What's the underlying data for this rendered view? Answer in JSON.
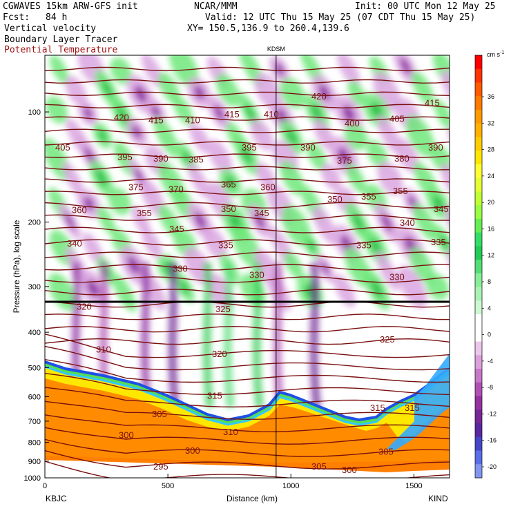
{
  "header": {
    "model": "CGWAVES 15km ARW-GFS init",
    "fcst_label": "Fcst:",
    "fcst_value": "84 h",
    "field1": "Vertical velocity",
    "field2": "Boundary Layer Tracer",
    "field3": "Potential Temperature",
    "center": "NCAR/MMM",
    "init": "Init: 00 UTC Mon 12 May 25",
    "valid": "Valid: 12 UTC Thu 15 May 25 (07 CDT Thu 15 May 25)",
    "xy": "XY= 150.5,136.9 to 260.4,139.6"
  },
  "chart_data": {
    "type": "heatmap",
    "subtitle": "cross section",
    "midpoint_label": "KDSM",
    "midpoint_km": 940,
    "xlabel": "Distance (km)",
    "ylabel": "Pressure (hPa), log scale",
    "xlim": [
      0,
      1645
    ],
    "ylim": [
      1000,
      70
    ],
    "y_scale": "log",
    "x_ticks": [
      0,
      500,
      1000,
      1500
    ],
    "y_ticks": [
      100,
      200,
      300,
      400,
      500,
      600,
      700,
      800,
      900,
      1000
    ],
    "left_station": "KBJC",
    "right_station": "KIND",
    "colorbar": {
      "unit": "cm s",
      "unit_exp": "-1",
      "labels": [
        36,
        32,
        28,
        24,
        20,
        16,
        12,
        8,
        4,
        0,
        -4,
        -8,
        -12,
        -16,
        -20
      ],
      "colors": [
        "#ff0000",
        "#ff3300",
        "#ff5a00",
        "#ff7a00",
        "#ff9900",
        "#ffb000",
        "#ffcc00",
        "#ffe600",
        "#ffff33",
        "#e6ff33",
        "#c0ff33",
        "#99ff44",
        "#66ee55",
        "#33dd66",
        "#22cc55",
        "#55dd77",
        "#88ee99",
        "#aaf2b4",
        "#ccf8d2",
        "#ffffff",
        "#ffffff",
        "#ebc8eb",
        "#dca0dc",
        "#c878c8",
        "#b050b4",
        "#9632a0",
        "#782896",
        "#5a28a0",
        "#4646c8",
        "#5a6ee6",
        "#8296f0"
      ]
    },
    "theta_labels": [
      {
        "v": "420",
        "x": 165,
        "p": 105
      },
      {
        "v": "415",
        "x": 215,
        "p": 107
      },
      {
        "v": "410",
        "x": 268,
        "p": 107
      },
      {
        "v": "415",
        "x": 325,
        "p": 103
      },
      {
        "v": "410",
        "x": 382,
        "p": 103
      },
      {
        "v": "420",
        "x": 451,
        "p": 92
      },
      {
        "v": "400",
        "x": 499,
        "p": 109
      },
      {
        "v": "405",
        "x": 564,
        "p": 106
      },
      {
        "v": "415",
        "x": 615,
        "p": 96
      },
      {
        "v": "405",
        "x": 80,
        "p": 127
      },
      {
        "v": "395",
        "x": 170,
        "p": 135
      },
      {
        "v": "390",
        "x": 222,
        "p": 136
      },
      {
        "v": "385",
        "x": 273,
        "p": 137
      },
      {
        "v": "395",
        "x": 350,
        "p": 127
      },
      {
        "v": "390",
        "x": 435,
        "p": 127
      },
      {
        "v": "375",
        "x": 488,
        "p": 138
      },
      {
        "v": "380",
        "x": 571,
        "p": 136
      },
      {
        "v": "390",
        "x": 620,
        "p": 127
      },
      {
        "v": "375",
        "x": 186,
        "p": 163
      },
      {
        "v": "370",
        "x": 244,
        "p": 165
      },
      {
        "v": "365",
        "x": 320,
        "p": 160
      },
      {
        "v": "360",
        "x": 377,
        "p": 163
      },
      {
        "v": "350",
        "x": 474,
        "p": 176
      },
      {
        "v": "355",
        "x": 523,
        "p": 173
      },
      {
        "v": "355",
        "x": 569,
        "p": 167
      },
      {
        "v": "360",
        "x": 104,
        "p": 188
      },
      {
        "v": "355",
        "x": 198,
        "p": 192
      },
      {
        "v": "350",
        "x": 320,
        "p": 187
      },
      {
        "v": "345",
        "x": 368,
        "p": 192
      },
      {
        "v": "345",
        "x": 628,
        "p": 187
      },
      {
        "v": "345",
        "x": 245,
        "p": 212
      },
      {
        "v": "340",
        "x": 579,
        "p": 204
      },
      {
        "v": "340",
        "x": 97,
        "p": 232
      },
      {
        "v": "335",
        "x": 316,
        "p": 235
      },
      {
        "v": "335",
        "x": 516,
        "p": 235
      },
      {
        "v": "335",
        "x": 624,
        "p": 230
      },
      {
        "v": "330",
        "x": 250,
        "p": 272
      },
      {
        "v": "330",
        "x": 361,
        "p": 283
      },
      {
        "v": "330",
        "x": 564,
        "p": 287
      },
      {
        "v": "325",
        "x": 312,
        "p": 351
      },
      {
        "v": "325",
        "x": 550,
        "p": 425
      },
      {
        "v": "320",
        "x": 111,
        "p": 346
      },
      {
        "v": "320",
        "x": 307,
        "p": 465
      },
      {
        "v": "310",
        "x": 139,
        "p": 452
      },
      {
        "v": "315",
        "x": 300,
        "p": 605
      },
      {
        "v": "315",
        "x": 536,
        "p": 653
      },
      {
        "v": "315",
        "x": 586,
        "p": 653
      },
      {
        "v": "305",
        "x": 220,
        "p": 680
      },
      {
        "v": "300",
        "x": 172,
        "p": 775
      },
      {
        "v": "310",
        "x": 323,
        "p": 760
      },
      {
        "v": "300",
        "x": 268,
        "p": 855
      },
      {
        "v": "305",
        "x": 548,
        "p": 860
      },
      {
        "v": "295",
        "x": 222,
        "p": 945
      },
      {
        "v": "305",
        "x": 451,
        "p": 945
      },
      {
        "v": "300",
        "x": 495,
        "p": 965
      }
    ]
  }
}
